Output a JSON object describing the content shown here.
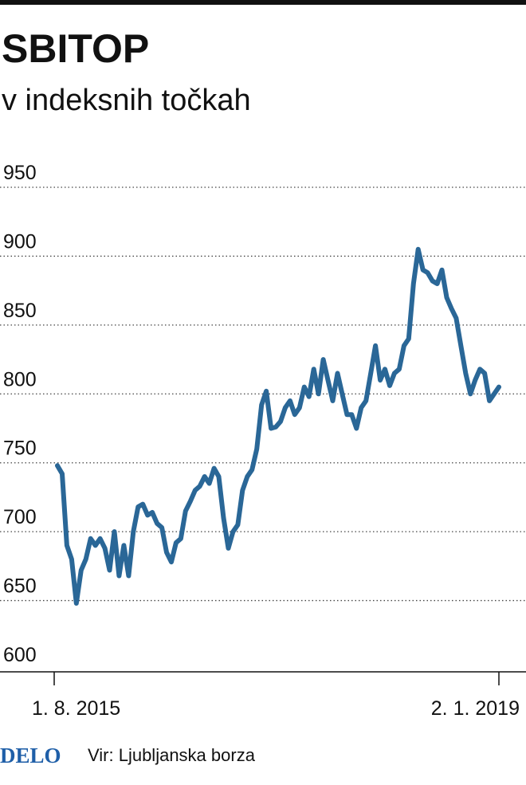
{
  "chart_data": {
    "type": "line",
    "title": "SBITOP",
    "subtitle": "v indeksnih točkah",
    "source": "Vir: Ljubljanska borza",
    "logo": "DELO",
    "color": "#2a6797",
    "grid": true,
    "ylim": [
      600,
      950
    ],
    "yticks": [
      600,
      650,
      700,
      750,
      800,
      850,
      900,
      950
    ],
    "categories": [
      "1. 8. 2015",
      null,
      null,
      null,
      null,
      null,
      null,
      null,
      null,
      null,
      null,
      null,
      null,
      null,
      null,
      null,
      null,
      null,
      null,
      null,
      null,
      null,
      null,
      null,
      null,
      null,
      null,
      null,
      null,
      null,
      null,
      null,
      null,
      null,
      null,
      null,
      null,
      null,
      null,
      null,
      null,
      null,
      null,
      null,
      null,
      null,
      null,
      null,
      null,
      null,
      null,
      null,
      null,
      null,
      null,
      null,
      null,
      null,
      null,
      null,
      null,
      null,
      null,
      null,
      null,
      null,
      null,
      null,
      null,
      null,
      null,
      null,
      null,
      null,
      null,
      null,
      null,
      null,
      null,
      null,
      null,
      null,
      null,
      null,
      null,
      null,
      null,
      null,
      null,
      null,
      null,
      null,
      null,
      "2. 1. 2019"
    ],
    "values": [
      748,
      742,
      690,
      680,
      648,
      672,
      680,
      695,
      690,
      695,
      688,
      672,
      700,
      668,
      690,
      668,
      700,
      718,
      720,
      712,
      714,
      706,
      703,
      685,
      678,
      692,
      695,
      715,
      722,
      730,
      733,
      740,
      735,
      746,
      740,
      710,
      688,
      700,
      705,
      730,
      740,
      745,
      760,
      792,
      802,
      775,
      776,
      780,
      790,
      795,
      785,
      790,
      805,
      798,
      818,
      800,
      825,
      810,
      795,
      815,
      800,
      785,
      785,
      775,
      790,
      795,
      815,
      835,
      810,
      818,
      806,
      815,
      818,
      835,
      840,
      880,
      905,
      890,
      888,
      882,
      880,
      890,
      870,
      862,
      855,
      835,
      815,
      800,
      810,
      818,
      815,
      795,
      800,
      805
    ]
  }
}
